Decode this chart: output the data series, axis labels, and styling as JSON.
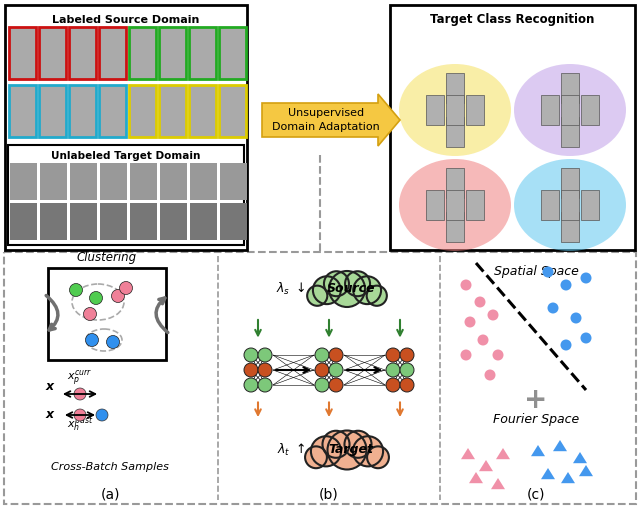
{
  "fig_width": 6.4,
  "fig_height": 5.08,
  "dpi": 100,
  "bg_color": "#ffffff",
  "top_left_title": "Labeled Source Domain",
  "top_right_title": "Target Class Recognition",
  "arrow_text_line1": "Unsupervised",
  "arrow_text_line2": "Domain Adaptation",
  "bottom_label_a": "(a)",
  "bottom_label_b": "(b)",
  "bottom_label_c": "(c)",
  "cluster_title": "Clustering",
  "cross_batch_label": "Cross-Batch Samples",
  "source_label": "Source",
  "target_label": "Target",
  "spatial_label": "Spatial Space",
  "fourier_label": "Fourier Space",
  "unlabeled_title": "Unlabeled Target Domain",
  "green_color": "#7dc87a",
  "orange_color": "#c85020",
  "pink_color": "#f4a0a8",
  "blue_color": "#4da6ff",
  "source_cloud_color": "#a8d898",
  "target_cloud_color": "#f0b090",
  "arrow_color": "#f5c842",
  "arrow_edge": "#d4a010",
  "gray_arrow": "#707070",
  "dashed_color": "#999999"
}
